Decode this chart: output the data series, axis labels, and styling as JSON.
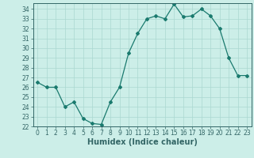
{
  "x": [
    0,
    1,
    2,
    3,
    4,
    5,
    6,
    7,
    8,
    9,
    10,
    11,
    12,
    13,
    14,
    15,
    16,
    17,
    18,
    19,
    20,
    21,
    22,
    23
  ],
  "y": [
    26.5,
    26.0,
    26.0,
    24.0,
    24.5,
    22.8,
    22.3,
    22.2,
    24.5,
    26.0,
    29.5,
    31.5,
    33.0,
    33.3,
    33.0,
    34.5,
    33.2,
    33.3,
    34.0,
    33.3,
    32.0,
    29.0,
    27.2,
    27.2
  ],
  "line_color": "#1a7a6e",
  "marker": "D",
  "marker_size": 2.0,
  "bg_color": "#cceee8",
  "grid_color": "#aad8d0",
  "xlabel": "Humidex (Indice chaleur)",
  "ylim_min": 22,
  "ylim_max": 34.6,
  "xlim_min": -0.5,
  "xlim_max": 23.5,
  "yticks": [
    22,
    23,
    24,
    25,
    26,
    27,
    28,
    29,
    30,
    31,
    32,
    33,
    34
  ],
  "xticks": [
    0,
    1,
    2,
    3,
    4,
    5,
    6,
    7,
    8,
    9,
    10,
    11,
    12,
    13,
    14,
    15,
    16,
    17,
    18,
    19,
    20,
    21,
    22,
    23
  ],
  "tick_fontsize": 5.5,
  "xlabel_fontsize": 7.0,
  "axis_color": "#336666",
  "linewidth": 0.9
}
